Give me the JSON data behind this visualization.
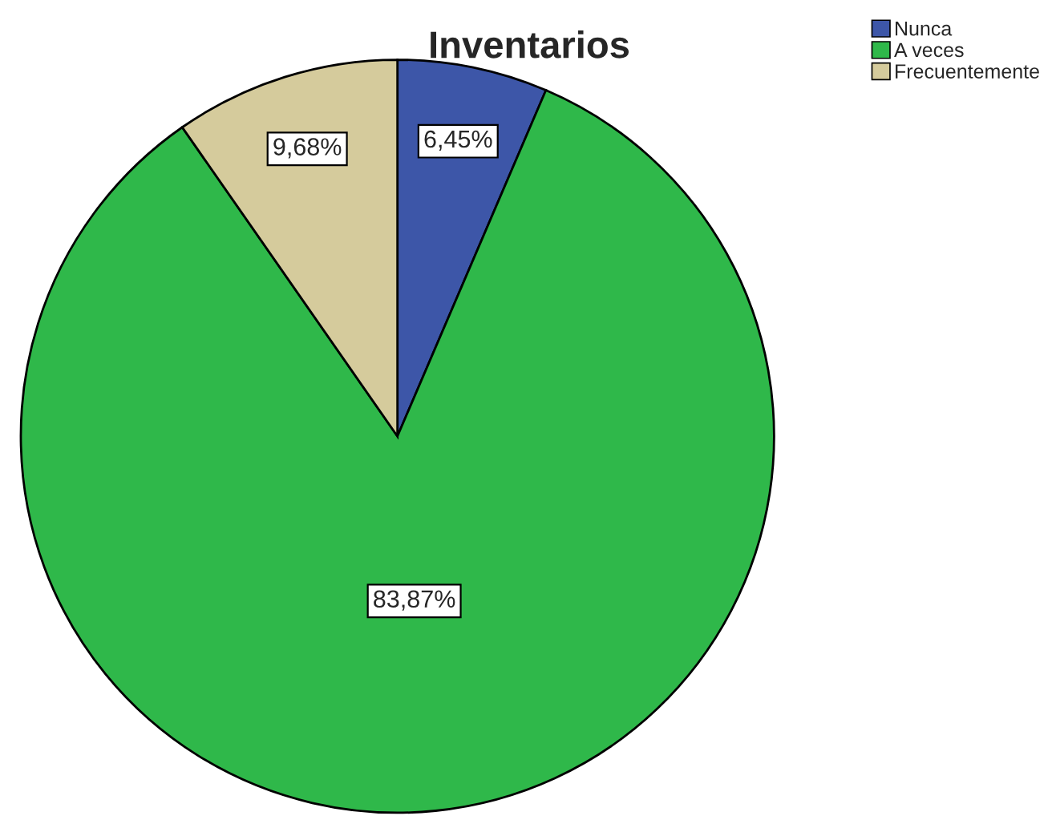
{
  "chart_data": {
    "type": "pie",
    "title": "Inventarios",
    "categories": [
      "Nunca",
      "A veces",
      "Frecuentemente"
    ],
    "values": [
      6.45,
      83.87,
      9.68
    ],
    "colors": [
      "#3d56a8",
      "#2fb84a",
      "#d5cb9c"
    ],
    "value_labels": [
      "6,45%",
      "83,87%",
      "9,68%"
    ],
    "legend": "top right"
  }
}
